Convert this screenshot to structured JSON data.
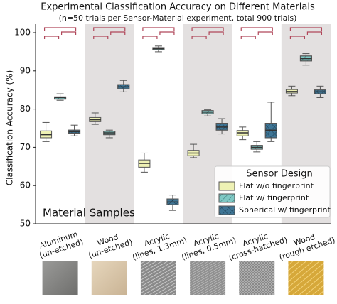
{
  "chart_data": {
    "type": "box",
    "title": "Experimental Classification Accuracy on Different Materials",
    "subtitle": "(n=50 trials per Sensor-Material experiment, total 900 trials)",
    "y_label": "Classification Accuracy (%)",
    "annotation": "Material Samples",
    "legend_title": "Sensor Design",
    "legend_position": "lower right",
    "categories": [
      "Aluminum (un-etched)",
      "Wood (un-etched)",
      "Acrylic (lines, 1.3mm)",
      "Acrylic (lines, 0.5mm)",
      "Acrylic (cross-hatched)",
      "Wood (rough etched)"
    ],
    "ylim": [
      50,
      100
    ],
    "yticks": [
      50,
      60,
      70,
      80,
      90,
      100
    ],
    "series": [
      {
        "name": "Flat w/o fingerprint",
        "color": "#eef1b4",
        "values": [
          {
            "min": 71.5,
            "q1": 72.5,
            "median": 73.3,
            "q3": 74.3,
            "max": 76.5
          },
          {
            "min": 76,
            "q1": 76.7,
            "median": 77.2,
            "q3": 77.8,
            "max": 79
          },
          {
            "min": 63.5,
            "q1": 64.8,
            "median": 65.8,
            "q3": 66.7,
            "max": 68.5
          },
          {
            "min": 67.3,
            "q1": 67.8,
            "median": 68.5,
            "q3": 69.2,
            "max": 70.8
          },
          {
            "min": 72,
            "q1": 73,
            "median": 73.8,
            "q3": 74.4,
            "max": 75.3
          },
          {
            "min": 83.5,
            "q1": 84.2,
            "median": 84.6,
            "q3": 85.1,
            "max": 86
          }
        ]
      },
      {
        "name": "Flat w/ fingerprint",
        "color": "#7fc8c4",
        "values": [
          {
            "min": 82.3,
            "q1": 82.6,
            "median": 83,
            "q3": 83.2,
            "max": 84
          },
          {
            "min": 72.5,
            "q1": 73.3,
            "median": 73.8,
            "q3": 74.2,
            "max": 74.5
          },
          {
            "min": 95,
            "q1": 95.5,
            "median": 95.8,
            "q3": 96.1,
            "max": 96.5
          },
          {
            "min": 78.2,
            "q1": 78.8,
            "median": 79.2,
            "q3": 79.6,
            "max": 79.8
          },
          {
            "min": 68.8,
            "q1": 69.5,
            "median": 70,
            "q3": 70.5,
            "max": 71.5
          },
          {
            "min": 91.5,
            "q1": 92.6,
            "median": 93.2,
            "q3": 93.9,
            "max": 94.5
          }
        ]
      },
      {
        "name": "Spherical w/ fingerprint",
        "color": "#3e7595",
        "values": [
          {
            "min": 73,
            "q1": 73.7,
            "median": 74.1,
            "q3": 74.5,
            "max": 75.8
          },
          {
            "min": 84.5,
            "q1": 85.3,
            "median": 85.8,
            "q3": 86.4,
            "max": 87.5
          },
          {
            "min": 53.5,
            "q1": 55,
            "median": 55.7,
            "q3": 56.5,
            "max": 57.5
          },
          {
            "min": 73.5,
            "q1": 74.5,
            "median": 75.3,
            "q3": 76.3,
            "max": 77.5
          },
          {
            "min": 71.5,
            "q1": 72.5,
            "median": 74.5,
            "q3": 76.3,
            "max": 81.8
          },
          {
            "min": 83,
            "q1": 84,
            "median": 84.5,
            "q3": 85,
            "max": 86
          }
        ]
      }
    ]
  }
}
